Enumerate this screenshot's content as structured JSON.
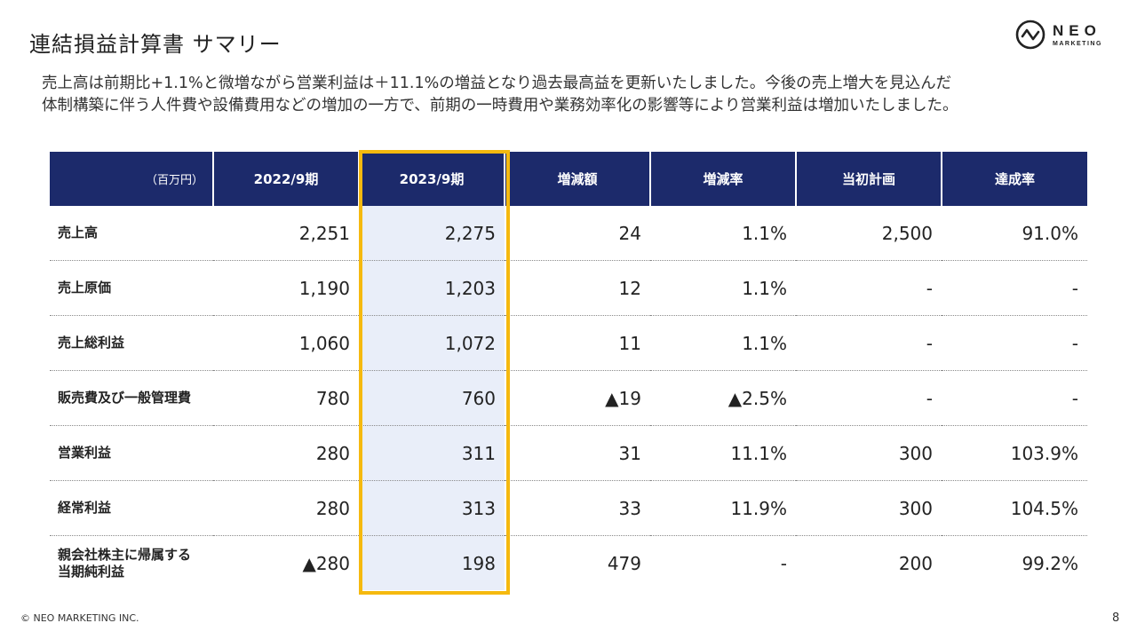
{
  "title": "連結損益計算書 サマリー",
  "logo": {
    "main": "NEO",
    "sub": "MARKETING"
  },
  "lead": [
    "売上高は前期比+1.1%と微増ながら営業利益は＋11.1%の増益となり過去最高益を更新いたしました。今後の売上増大を見込んだ",
    "体制構築に伴う人件費や設備費用などの増加の一方で、前期の一時費用や業務効率化の影響等により営業利益は増加いたしました。"
  ],
  "table": {
    "headers": [
      "（百万円）",
      "2022/9期",
      "2023/9期",
      "増減額",
      "増減率",
      "当初計画",
      "達成率"
    ],
    "rows": [
      {
        "label": "売上高",
        "cells": [
          "2,251",
          "2,275",
          "24",
          "1.1%",
          "2,500",
          "91.0%"
        ]
      },
      {
        "label": "売上原価",
        "cells": [
          "1,190",
          "1,203",
          "12",
          "1.1%",
          "-",
          "-"
        ]
      },
      {
        "label": "売上総利益",
        "cells": [
          "1,060",
          "1,072",
          "11",
          "1.1%",
          "-",
          "-"
        ]
      },
      {
        "label": "販売費及び一般管理費",
        "cells": [
          "780",
          "760",
          "▲19",
          "▲2.5%",
          "-",
          "-"
        ]
      },
      {
        "label": "営業利益",
        "cells": [
          "280",
          "311",
          "31",
          "11.1%",
          "300",
          "103.9%"
        ]
      },
      {
        "label": "経常利益",
        "cells": [
          "280",
          "313",
          "33",
          "11.9%",
          "300",
          "104.5%"
        ]
      },
      {
        "label": "親会社株主に帰属する当期純利益",
        "label_lines": [
          "親会社株主に帰属する",
          "当期純利益"
        ],
        "cells": [
          "▲280",
          "198",
          "479",
          "-",
          "200",
          "99.2%"
        ]
      }
    ]
  },
  "colors": {
    "header_bg": "#1c2a6b",
    "highlight_border": "#f5b90f",
    "highlight_fill": "#e9eef9"
  },
  "footer": "© NEO MARKETING INC.",
  "page_number": "8"
}
